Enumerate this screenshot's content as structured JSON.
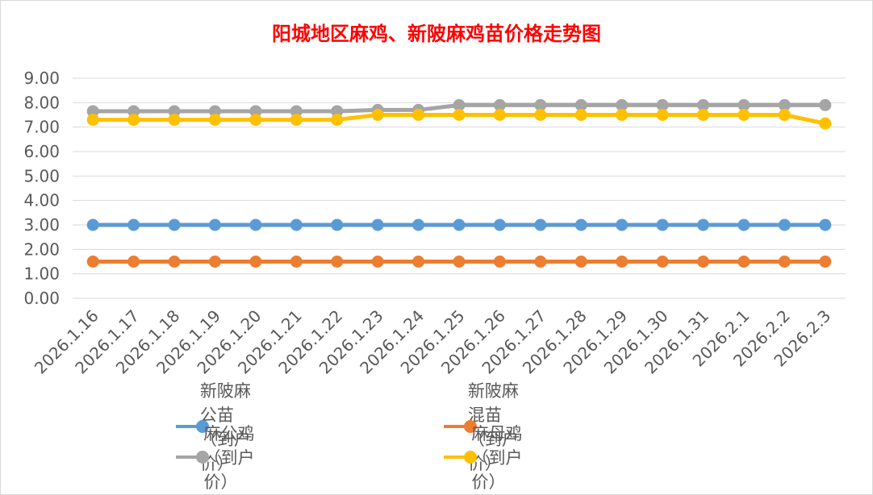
{
  "chart_data": {
    "type": "line",
    "title": "阳城地区麻鸡、新陂麻鸡苗价格走势图",
    "xlabel": "",
    "ylabel": "",
    "ylim": [
      0,
      9
    ],
    "yticks": [
      "0.00",
      "1.00",
      "2.00",
      "3.00",
      "4.00",
      "5.00",
      "6.00",
      "7.00",
      "8.00",
      "9.00"
    ],
    "grid": true,
    "legend_position": "bottom",
    "categories": [
      "2026.1.16",
      "2026.1.17",
      "2026.1.18",
      "2026.1.19",
      "2026.1.20",
      "2026.1.21",
      "2026.1.22",
      "2026.1.23",
      "2026.1.24",
      "2026.1.25",
      "2026.1.26",
      "2026.1.27",
      "2026.1.28",
      "2026.1.29",
      "2026.1.30",
      "2026.1.31",
      "2026.2.1",
      "2026.2.2",
      "2026.2.3"
    ],
    "series": [
      {
        "name": "新陂麻公苗（到户价）",
        "color": "#5b9bd5",
        "values": [
          3.0,
          3.0,
          3.0,
          3.0,
          3.0,
          3.0,
          3.0,
          3.0,
          3.0,
          3.0,
          3.0,
          3.0,
          3.0,
          3.0,
          3.0,
          3.0,
          3.0,
          3.0,
          3.0
        ]
      },
      {
        "name": "新陂麻混苗（到户价）",
        "color": "#ed7d31",
        "values": [
          1.5,
          1.5,
          1.5,
          1.5,
          1.5,
          1.5,
          1.5,
          1.5,
          1.5,
          1.5,
          1.5,
          1.5,
          1.5,
          1.5,
          1.5,
          1.5,
          1.5,
          1.5,
          1.5
        ]
      },
      {
        "name": "麻公鸡（到户价）",
        "color": "#a5a5a5",
        "values": [
          7.65,
          7.65,
          7.65,
          7.65,
          7.65,
          7.65,
          7.65,
          7.7,
          7.7,
          7.9,
          7.9,
          7.9,
          7.9,
          7.9,
          7.9,
          7.9,
          7.9,
          7.9,
          7.9
        ]
      },
      {
        "name": "麻母鸡（到户价）",
        "color": "#ffc000",
        "values": [
          7.3,
          7.3,
          7.3,
          7.3,
          7.3,
          7.3,
          7.3,
          7.5,
          7.5,
          7.5,
          7.5,
          7.5,
          7.5,
          7.5,
          7.5,
          7.5,
          7.5,
          7.5,
          7.15
        ]
      }
    ]
  }
}
